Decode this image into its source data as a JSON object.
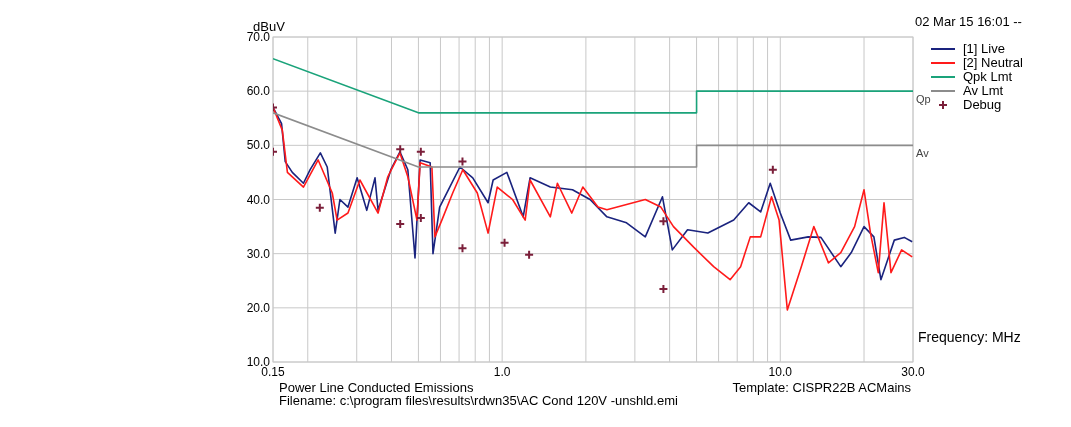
{
  "chart_data": {
    "type": "line",
    "subtitle": "02 Mar 15 16:01 --",
    "xlabel": "Frequency: MHz",
    "ylabel": "dBuV",
    "log": "x",
    "grid": true,
    "legend": "top right",
    "line_style": "solid",
    "xlim": [
      0.15,
      30
    ],
    "ylim": [
      10,
      70
    ],
    "xticks": [
      {
        "value": 0.15,
        "label": "0.15"
      },
      {
        "value": 0.2,
        "label": null
      },
      {
        "value": 0.3,
        "label": null
      },
      {
        "value": 0.4,
        "label": null
      },
      {
        "value": 0.5,
        "label": null
      },
      {
        "value": 0.6,
        "label": null
      },
      {
        "value": 0.7,
        "label": null
      },
      {
        "value": 0.8,
        "label": null
      },
      {
        "value": 0.9,
        "label": null
      },
      {
        "value": 1,
        "label": "1.0"
      },
      {
        "value": 2,
        "label": null
      },
      {
        "value": 3,
        "label": null
      },
      {
        "value": 4,
        "label": null
      },
      {
        "value": 5,
        "label": null
      },
      {
        "value": 6,
        "label": null
      },
      {
        "value": 7,
        "label": null
      },
      {
        "value": 8,
        "label": null
      },
      {
        "value": 9,
        "label": null
      },
      {
        "value": 10,
        "label": "10.0"
      },
      {
        "value": 20,
        "label": null
      },
      {
        "value": 30,
        "label": "30.0"
      }
    ],
    "yticks": [
      {
        "value": 10,
        "label": "10.0"
      },
      {
        "value": 20,
        "label": "20.0"
      },
      {
        "value": 30,
        "label": "30.0"
      },
      {
        "value": 40,
        "label": "40.0"
      },
      {
        "value": 50,
        "label": "50.0"
      },
      {
        "value": 60,
        "label": "60.0"
      },
      {
        "value": 70,
        "label": "70.0"
      }
    ],
    "series": [
      {
        "name": "[1] Live",
        "color": "#1a237e",
        "x": [
          0.15,
          0.161,
          0.166,
          0.176,
          0.193,
          0.204,
          0.222,
          0.235,
          0.251,
          0.261,
          0.279,
          0.301,
          0.326,
          0.349,
          0.358,
          0.398,
          0.429,
          0.458,
          0.486,
          0.507,
          0.551,
          0.564,
          0.596,
          0.648,
          0.705,
          0.784,
          0.89,
          0.928,
          1.04,
          1.19,
          1.26,
          1.49,
          1.79,
          2.07,
          2.38,
          2.8,
          3.27,
          3.77,
          4.09,
          4.64,
          5.49,
          6.8,
          7.7,
          8.5,
          9.2,
          10,
          10.9,
          12.6,
          14,
          16.5,
          18,
          20,
          21.7,
          23,
          25.7,
          27.9,
          29.8
        ],
        "values": [
          57,
          54,
          47,
          45,
          43,
          45.5,
          48.6,
          46,
          33.8,
          40,
          38.6,
          44,
          38,
          44,
          38,
          45.5,
          48.8,
          45.5,
          29.2,
          47.3,
          46.8,
          30,
          38.6,
          42.3,
          46,
          44,
          39.4,
          43.6,
          45,
          36.8,
          44,
          42.3,
          41.8,
          40,
          36.8,
          35.7,
          33.1,
          40.5,
          30.7,
          34.4,
          33.8,
          36.2,
          39.4,
          37.7,
          43,
          37.5,
          32.5,
          33.1,
          33,
          27.6,
          30.2,
          35,
          33.1,
          25.2,
          32.5,
          33,
          32.2
        ]
      },
      {
        "name": "[2] Neutral",
        "color": "#ff1a1a",
        "x": [
          0.15,
          0.162,
          0.169,
          0.193,
          0.218,
          0.245,
          0.255,
          0.279,
          0.308,
          0.358,
          0.388,
          0.429,
          0.458,
          0.494,
          0.507,
          0.559,
          0.573,
          0.607,
          0.664,
          0.722,
          0.814,
          0.89,
          0.96,
          1.09,
          1.21,
          1.26,
          1.49,
          1.58,
          1.78,
          1.95,
          2.21,
          2.38,
          3.27,
          3.72,
          4.13,
          4.88,
          5.76,
          6.6,
          7.2,
          7.8,
          8.5,
          9.3,
          9.9,
          10.6,
          11.9,
          13.2,
          14.9,
          16.5,
          18.5,
          20,
          21.1,
          22.5,
          23.6,
          25,
          27.3,
          29.8
        ],
        "values": [
          57,
          52.8,
          45,
          42.3,
          47.3,
          41.2,
          36.2,
          37.5,
          43.6,
          37.5,
          44.2,
          48.6,
          44.2,
          36.2,
          46.8,
          46,
          33.1,
          36.2,
          41.2,
          45.5,
          41.2,
          33.8,
          42.3,
          40,
          36.2,
          43.6,
          36.8,
          43,
          37.5,
          42.3,
          38.6,
          38.1,
          40,
          38.6,
          35,
          31.2,
          27.6,
          25.2,
          27.6,
          33.1,
          33.1,
          40.5,
          36.2,
          19.6,
          27.6,
          35,
          28.3,
          30.2,
          35,
          41.8,
          33.8,
          26.5,
          39.4,
          26.5,
          30.7,
          29.4
        ]
      },
      {
        "name": "Qpk Lmt",
        "color": "#1aa37a",
        "x": [
          0.15,
          0.5,
          5,
          5,
          30
        ],
        "values": [
          66,
          56,
          56,
          60,
          60
        ]
      },
      {
        "name": "Av Lmt",
        "color": "#8c8c8c",
        "x": [
          0.15,
          0.5,
          5,
          5,
          30
        ],
        "values": [
          56,
          46,
          46,
          50,
          50
        ]
      },
      {
        "name": "Debug",
        "type": "scatter",
        "marker": "cross",
        "color": "#7b1f3a",
        "x": [
          0.15,
          0.15,
          0.221,
          0.43,
          0.43,
          0.51,
          0.51,
          0.72,
          0.72,
          1.02,
          1.25,
          3.8,
          3.8,
          9.4
        ],
        "values": [
          57,
          48.8,
          38.5,
          35.5,
          49.3,
          48.8,
          36.6,
          31,
          47,
          32,
          29.8,
          23.5,
          36,
          45.5
        ]
      }
    ],
    "annotations": [
      {
        "text": "Qp",
        "x": 30,
        "y": 60
      },
      {
        "text": "Av",
        "x": 30,
        "y": 50
      },
      "Power Line Conducted Emissions",
      "Template: CISPR22B ACMains",
      "Filename: c:\\program files\\results\\rdwn35\\AC Cond 120V -unshld.emi"
    ]
  }
}
